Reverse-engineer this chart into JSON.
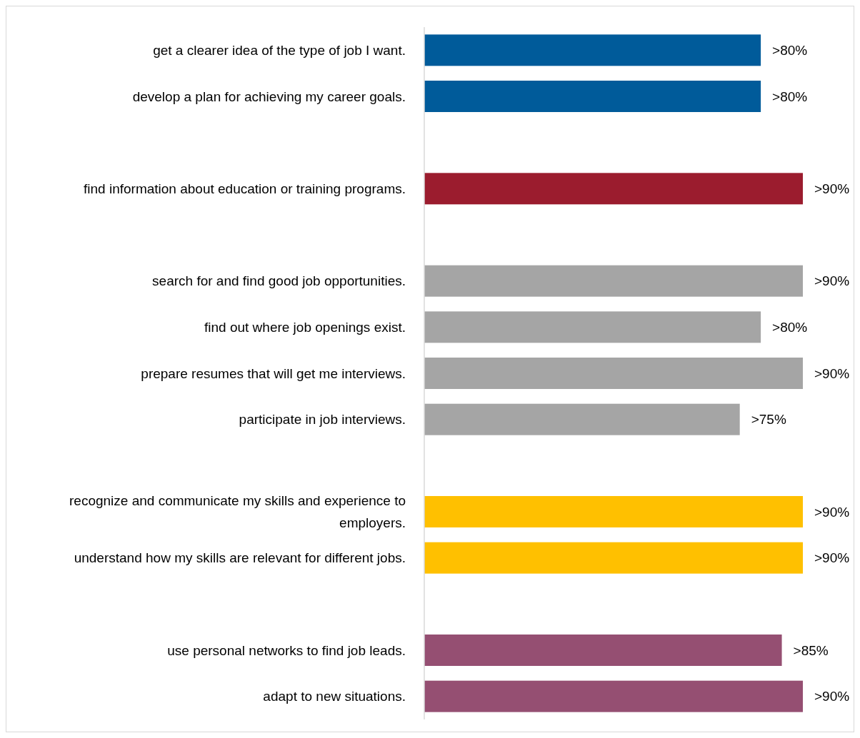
{
  "chart_data": {
    "type": "bar",
    "orientation": "horizontal",
    "categories": [
      "get a clearer idea of the type of job I want.",
      "develop a plan for achieving my career goals.",
      null,
      "find information about education or training programs.",
      null,
      "search for and find good job opportunities.",
      "find out where job openings exist.",
      "prepare resumes that will get me interviews.",
      "participate in job interviews.",
      null,
      "recognize and communicate my skills and experience to employers.",
      "understand how my skills are relevant for different jobs.",
      null,
      "use personal networks to find job leads.",
      "adapt to new situations."
    ],
    "values": [
      80,
      80,
      null,
      90,
      null,
      90,
      80,
      90,
      75,
      null,
      90,
      90,
      null,
      85,
      90
    ],
    "value_labels": [
      ">80%",
      ">80%",
      null,
      ">90%",
      null,
      ">90%",
      ">80%",
      ">90%",
      ">75%",
      null,
      ">90%",
      ">90%",
      null,
      ">85%",
      ">90%"
    ],
    "colors": [
      "#005b9a",
      "#005b9a",
      null,
      "#9b1c2e",
      null,
      "#a5a5a5",
      "#a5a5a5",
      "#a5a5a5",
      "#a5a5a5",
      null,
      "#ffc000",
      "#ffc000",
      null,
      "#954f72",
      "#954f72"
    ],
    "data_labels": false
  }
}
